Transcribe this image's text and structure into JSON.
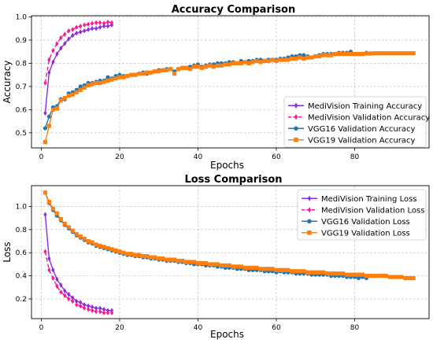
{
  "chart_data": [
    {
      "type": "line",
      "title": "Accuracy Comparison",
      "xlabel": "Epochs",
      "ylabel": "Accuracy",
      "xlim": [
        -2.5,
        99
      ],
      "ylim": [
        0.435,
        1.005
      ],
      "xticks": [
        0,
        20,
        40,
        60,
        80
      ],
      "yticks": [
        0.5,
        0.6,
        0.7,
        0.8,
        0.9,
        1.0
      ],
      "ytick_labels": [
        "0.5",
        "0.6",
        "0.7",
        "0.8",
        "0.9",
        "1.0"
      ],
      "grid": true,
      "legend_position": "lower-right",
      "series": [
        {
          "name": "MediVision Training Accuracy",
          "color": "#8a2be2",
          "marker": "diamond",
          "dash": false,
          "x": [
            1,
            2,
            3,
            4,
            5,
            6,
            7,
            8,
            9,
            10,
            11,
            12,
            13,
            14,
            15,
            16,
            17,
            18
          ],
          "values": [
            0.585,
            0.76,
            0.805,
            0.84,
            0.865,
            0.885,
            0.905,
            0.92,
            0.93,
            0.935,
            0.94,
            0.945,
            0.95,
            0.95,
            0.955,
            0.96,
            0.96,
            0.965
          ]
        },
        {
          "name": "MediVision Validation Accuracy",
          "color": "#ff1493",
          "marker": "diamond",
          "dash": true,
          "x": [
            1,
            2,
            3,
            4,
            5,
            6,
            7,
            8,
            9,
            10,
            11,
            12,
            13,
            14,
            15,
            16,
            17,
            18
          ],
          "values": [
            0.715,
            0.815,
            0.855,
            0.885,
            0.91,
            0.925,
            0.94,
            0.945,
            0.955,
            0.96,
            0.965,
            0.968,
            0.972,
            0.975,
            0.975,
            0.972,
            0.978,
            0.975
          ]
        },
        {
          "name": "VGG16 Validation Accuracy",
          "color": "#1f77b4",
          "marker": "circle",
          "dash": false,
          "x": [
            1,
            2,
            3,
            4,
            5,
            6,
            7,
            8,
            9,
            10,
            11,
            12,
            13,
            14,
            15,
            16,
            17,
            18,
            19,
            20,
            21,
            22,
            23,
            24,
            25,
            26,
            27,
            28,
            29,
            30,
            31,
            32,
            33,
            34,
            35,
            36,
            37,
            38,
            39,
            40,
            41,
            42,
            43,
            44,
            45,
            46,
            47,
            48,
            49,
            50,
            51,
            52,
            53,
            54,
            55,
            56,
            57,
            58,
            59,
            60,
            61,
            62,
            63,
            64,
            65,
            66,
            67,
            68,
            69,
            70,
            71,
            72,
            73,
            74,
            75,
            76,
            77,
            78,
            79,
            80,
            81,
            82,
            83
          ],
          "values": [
            0.52,
            0.57,
            0.61,
            0.615,
            0.645,
            0.645,
            0.67,
            0.675,
            0.685,
            0.7,
            0.705,
            0.715,
            0.715,
            0.72,
            0.725,
            0.725,
            0.74,
            0.735,
            0.745,
            0.75,
            0.745,
            0.745,
            0.75,
            0.75,
            0.755,
            0.76,
            0.755,
            0.76,
            0.765,
            0.77,
            0.77,
            0.775,
            0.775,
            0.765,
            0.775,
            0.78,
            0.78,
            0.785,
            0.79,
            0.795,
            0.785,
            0.79,
            0.795,
            0.795,
            0.8,
            0.8,
            0.8,
            0.805,
            0.805,
            0.8,
            0.81,
            0.805,
            0.81,
            0.81,
            0.815,
            0.815,
            0.81,
            0.815,
            0.815,
            0.815,
            0.82,
            0.82,
            0.825,
            0.83,
            0.83,
            0.835,
            0.835,
            0.83,
            0.825,
            0.83,
            0.835,
            0.84,
            0.84,
            0.84,
            0.84,
            0.845,
            0.845,
            0.845,
            0.85,
            0.84,
            0.84,
            0.84,
            0.845
          ]
        },
        {
          "name": "VGG19 Validation Accuracy",
          "color": "#ff7f0e",
          "marker": "square",
          "dash": false,
          "x": [
            1,
            2,
            3,
            4,
            5,
            6,
            7,
            8,
            9,
            10,
            11,
            12,
            13,
            14,
            15,
            16,
            17,
            18,
            19,
            20,
            21,
            22,
            23,
            24,
            25,
            26,
            27,
            28,
            29,
            30,
            31,
            32,
            33,
            34,
            35,
            36,
            37,
            38,
            39,
            40,
            41,
            42,
            43,
            44,
            45,
            46,
            47,
            48,
            49,
            50,
            51,
            52,
            53,
            54,
            55,
            56,
            57,
            58,
            59,
            60,
            61,
            62,
            63,
            64,
            65,
            66,
            67,
            68,
            69,
            70,
            71,
            72,
            73,
            74,
            75,
            76,
            77,
            78,
            79,
            80,
            81,
            82,
            83,
            84,
            85,
            86,
            87,
            88,
            89,
            90,
            91,
            92,
            93,
            94,
            95
          ],
          "values": [
            0.46,
            0.53,
            0.6,
            0.605,
            0.64,
            0.65,
            0.66,
            0.665,
            0.675,
            0.685,
            0.695,
            0.705,
            0.71,
            0.715,
            0.715,
            0.72,
            0.725,
            0.73,
            0.735,
            0.74,
            0.74,
            0.745,
            0.75,
            0.75,
            0.755,
            0.755,
            0.76,
            0.76,
            0.765,
            0.765,
            0.77,
            0.77,
            0.775,
            0.755,
            0.775,
            0.78,
            0.78,
            0.775,
            0.785,
            0.785,
            0.78,
            0.785,
            0.79,
            0.785,
            0.79,
            0.79,
            0.795,
            0.795,
            0.8,
            0.8,
            0.8,
            0.805,
            0.8,
            0.805,
            0.81,
            0.805,
            0.81,
            0.81,
            0.815,
            0.81,
            0.815,
            0.815,
            0.815,
            0.82,
            0.82,
            0.825,
            0.82,
            0.825,
            0.825,
            0.83,
            0.83,
            0.835,
            0.835,
            0.835,
            0.84,
            0.84,
            0.84,
            0.84,
            0.84,
            0.84,
            0.84,
            0.84,
            0.842,
            0.842,
            0.843,
            0.843,
            0.843,
            0.843,
            0.843,
            0.843,
            0.843,
            0.843,
            0.843,
            0.843,
            0.843
          ]
        }
      ]
    },
    {
      "type": "line",
      "title": "Loss Comparison",
      "xlabel": "Epochs",
      "ylabel": "Loss",
      "xlim": [
        -2.5,
        99
      ],
      "ylim": [
        0.03,
        1.18
      ],
      "xticks": [
        0,
        20,
        40,
        60,
        80
      ],
      "yticks": [
        0.2,
        0.4,
        0.6,
        0.8,
        1.0
      ],
      "ytick_labels": [
        "0.2",
        "0.4",
        "0.6",
        "0.8",
        "1.0"
      ],
      "grid": true,
      "legend_position": "top-right",
      "series": [
        {
          "name": "MediVision Training Loss",
          "color": "#8a2be2",
          "marker": "diamond",
          "dash": false,
          "x": [
            1,
            2,
            3,
            4,
            5,
            6,
            7,
            8,
            9,
            10,
            11,
            12,
            13,
            14,
            15,
            16,
            17,
            18
          ],
          "values": [
            0.93,
            0.55,
            0.45,
            0.37,
            0.32,
            0.27,
            0.24,
            0.21,
            0.18,
            0.17,
            0.15,
            0.14,
            0.13,
            0.12,
            0.12,
            0.11,
            0.1,
            0.1
          ]
        },
        {
          "name": "MediVision Validation Loss",
          "color": "#ff1493",
          "marker": "diamond",
          "dash": true,
          "x": [
            1,
            2,
            3,
            4,
            5,
            6,
            7,
            8,
            9,
            10,
            11,
            12,
            13,
            14,
            15,
            16,
            17,
            18
          ],
          "values": [
            0.61,
            0.45,
            0.38,
            0.31,
            0.26,
            0.23,
            0.2,
            0.18,
            0.15,
            0.14,
            0.12,
            0.11,
            0.1,
            0.09,
            0.09,
            0.08,
            0.08,
            0.08
          ]
        },
        {
          "name": "VGG16 Validation Loss",
          "color": "#1f77b4",
          "marker": "circle",
          "dash": false,
          "x": [
            1,
            2,
            3,
            4,
            5,
            6,
            7,
            8,
            9,
            10,
            11,
            12,
            13,
            14,
            15,
            16,
            17,
            18,
            19,
            20,
            21,
            22,
            23,
            24,
            25,
            26,
            27,
            28,
            29,
            30,
            31,
            32,
            33,
            34,
            35,
            36,
            37,
            38,
            39,
            40,
            41,
            42,
            43,
            44,
            45,
            46,
            47,
            48,
            49,
            50,
            51,
            52,
            53,
            54,
            55,
            56,
            57,
            58,
            59,
            60,
            61,
            62,
            63,
            64,
            65,
            66,
            67,
            68,
            69,
            70,
            71,
            72,
            73,
            74,
            75,
            76,
            77,
            78,
            79,
            80,
            81,
            82,
            83
          ],
          "values": [
            1.12,
            1.03,
            0.97,
            0.92,
            0.88,
            0.84,
            0.81,
            0.78,
            0.75,
            0.73,
            0.71,
            0.69,
            0.68,
            0.66,
            0.65,
            0.64,
            0.63,
            0.62,
            0.61,
            0.6,
            0.59,
            0.58,
            0.58,
            0.57,
            0.57,
            0.56,
            0.56,
            0.55,
            0.55,
            0.54,
            0.54,
            0.53,
            0.53,
            0.53,
            0.52,
            0.52,
            0.51,
            0.51,
            0.5,
            0.5,
            0.5,
            0.49,
            0.49,
            0.49,
            0.48,
            0.48,
            0.47,
            0.47,
            0.47,
            0.46,
            0.46,
            0.46,
            0.45,
            0.45,
            0.45,
            0.45,
            0.44,
            0.44,
            0.44,
            0.43,
            0.44,
            0.43,
            0.43,
            0.43,
            0.42,
            0.42,
            0.42,
            0.42,
            0.41,
            0.41,
            0.41,
            0.41,
            0.41,
            0.4,
            0.4,
            0.4,
            0.4,
            0.39,
            0.39,
            0.39,
            0.38,
            0.39,
            0.38
          ]
        },
        {
          "name": "VGG19 Validation Loss",
          "color": "#ff7f0e",
          "marker": "square",
          "dash": false,
          "x": [
            1,
            2,
            3,
            4,
            5,
            6,
            7,
            8,
            9,
            10,
            11,
            12,
            13,
            14,
            15,
            16,
            17,
            18,
            19,
            20,
            21,
            22,
            23,
            24,
            25,
            26,
            27,
            28,
            29,
            30,
            31,
            32,
            33,
            34,
            35,
            36,
            37,
            38,
            39,
            40,
            41,
            42,
            43,
            44,
            45,
            46,
            47,
            48,
            49,
            50,
            51,
            52,
            53,
            54,
            55,
            56,
            57,
            58,
            59,
            60,
            61,
            62,
            63,
            64,
            65,
            66,
            67,
            68,
            69,
            70,
            71,
            72,
            73,
            74,
            75,
            76,
            77,
            78,
            79,
            80,
            81,
            82,
            83,
            84,
            85,
            86,
            87,
            88,
            89,
            90,
            91,
            92,
            93,
            94,
            95
          ],
          "values": [
            1.12,
            1.04,
            0.98,
            0.94,
            0.89,
            0.85,
            0.82,
            0.79,
            0.76,
            0.74,
            0.72,
            0.7,
            0.69,
            0.67,
            0.66,
            0.65,
            0.64,
            0.63,
            0.62,
            0.61,
            0.6,
            0.59,
            0.59,
            0.58,
            0.58,
            0.57,
            0.57,
            0.56,
            0.56,
            0.55,
            0.55,
            0.54,
            0.54,
            0.54,
            0.53,
            0.53,
            0.52,
            0.52,
            0.52,
            0.51,
            0.51,
            0.51,
            0.5,
            0.5,
            0.5,
            0.49,
            0.49,
            0.49,
            0.48,
            0.48,
            0.48,
            0.47,
            0.47,
            0.47,
            0.47,
            0.46,
            0.46,
            0.46,
            0.46,
            0.45,
            0.45,
            0.45,
            0.45,
            0.44,
            0.44,
            0.44,
            0.44,
            0.43,
            0.43,
            0.43,
            0.43,
            0.43,
            0.42,
            0.42,
            0.42,
            0.42,
            0.42,
            0.41,
            0.41,
            0.41,
            0.41,
            0.41,
            0.4,
            0.4,
            0.4,
            0.4,
            0.4,
            0.4,
            0.39,
            0.39,
            0.39,
            0.39,
            0.38,
            0.38,
            0.38
          ]
        }
      ]
    }
  ]
}
